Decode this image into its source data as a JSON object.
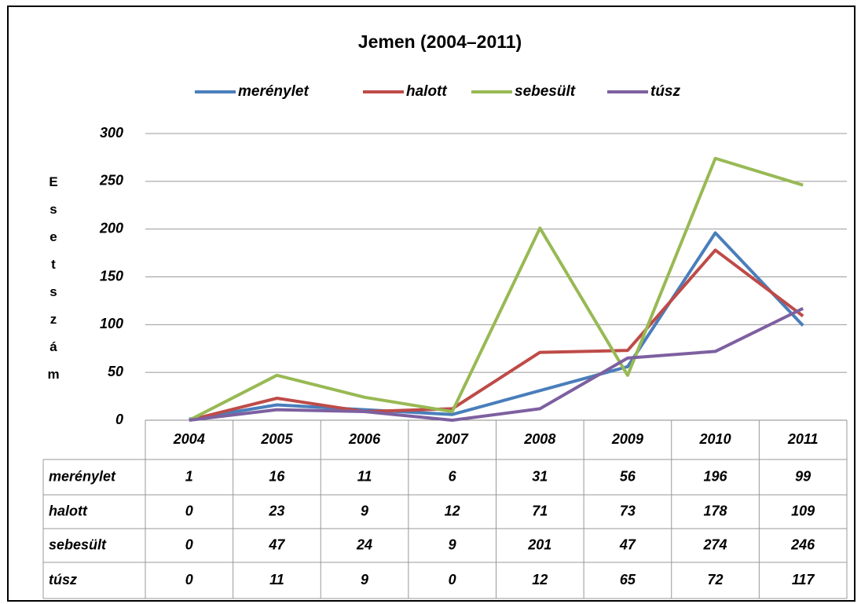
{
  "chart_data": {
    "type": "line",
    "title": "Jemen (2004–2011)",
    "y_label": "Esetszám",
    "categories": [
      "2004",
      "2005",
      "2006",
      "2007",
      "2008",
      "2009",
      "2010",
      "2011"
    ],
    "series": [
      {
        "name": "merénylet",
        "color": "#4a7ebb",
        "values": [
          1,
          16,
          11,
          6,
          31,
          56,
          196,
          99
        ]
      },
      {
        "name": "halott",
        "color": "#be4b48",
        "values": [
          0,
          23,
          9,
          12,
          71,
          73,
          178,
          109
        ]
      },
      {
        "name": "sebesült",
        "color": "#98b954",
        "values": [
          0,
          47,
          24,
          9,
          201,
          47,
          274,
          246
        ]
      },
      {
        "name": "túsz",
        "color": "#7d60a0",
        "values": [
          0,
          11,
          9,
          0,
          12,
          65,
          72,
          117
        ]
      }
    ],
    "ylim": [
      0,
      300
    ],
    "yticks": [
      0,
      50,
      100,
      150,
      200,
      250,
      300
    ],
    "grid": true,
    "legend": "top"
  }
}
